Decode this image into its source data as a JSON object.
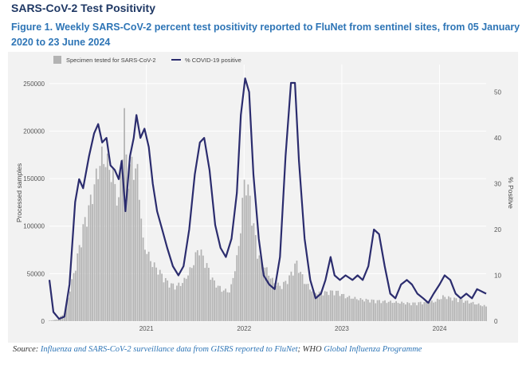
{
  "page": {
    "title": "SARS-CoV-2 Test Positivity",
    "caption_label": "Figure 1.",
    "caption_text": "Weekly SARS-CoV-2 percent test positivity reported to FluNet from sentinel sites, from 05 January 2020 to 23 June 2024",
    "source_label": "Source:",
    "source_link1": "Influenza and SARS-CoV-2 surveillance data from GISRS reported to FluNet",
    "source_sep": "; WHO ",
    "source_link2": "Global Influenza Programme"
  },
  "colors": {
    "bars": "#b3b3b3",
    "line": "#2b2c6e",
    "plot_bg": "#f2f2f2",
    "grid": "#ffffff",
    "title": "#1f3864",
    "caption": "#2e75b6"
  },
  "chart_data": {
    "type": "bar+line",
    "title": "",
    "xlabel": "",
    "ylabel": "Processed samples",
    "y2label": "% Positive",
    "ylim": [
      0,
      270000
    ],
    "y2lim": [
      0,
      56
    ],
    "yticks": [
      "0",
      "50000",
      "100000",
      "150000",
      "200000",
      "250000"
    ],
    "y2ticks": [
      "0",
      "10",
      "20",
      "30",
      "40",
      "50"
    ],
    "xticks": [
      "2021",
      "2022",
      "2023",
      "2024"
    ],
    "grid": true,
    "legend_position": "top-left",
    "series": [
      {
        "name": "Specimen tested for SARS-CoV-2",
        "kind": "bar",
        "axis": "left",
        "points": [
          [
            "2020-01-05",
            500
          ],
          [
            "2020-02-01",
            1500
          ],
          [
            "2020-03-01",
            8000
          ],
          [
            "2020-03-20",
            30000
          ],
          [
            "2020-04-15",
            60000
          ],
          [
            "2020-05-10",
            95000
          ],
          [
            "2020-06-05",
            120000
          ],
          [
            "2020-07-01",
            150000
          ],
          [
            "2020-07-20",
            168000
          ],
          [
            "2020-08-10",
            160000
          ],
          [
            "2020-09-01",
            145000
          ],
          [
            "2020-09-20",
            120000
          ],
          [
            "2020-10-10",
            215000
          ],
          [
            "2020-10-20",
            150000
          ],
          [
            "2020-11-10",
            160000
          ],
          [
            "2020-12-01",
            150000
          ],
          [
            "2020-12-20",
            80000
          ],
          [
            "2021-01-20",
            60000
          ],
          [
            "2021-02-20",
            50000
          ],
          [
            "2021-03-20",
            40000
          ],
          [
            "2021-04-20",
            35000
          ],
          [
            "2021-05-20",
            40000
          ],
          [
            "2021-06-20",
            55000
          ],
          [
            "2021-07-15",
            75000
          ],
          [
            "2021-08-10",
            60000
          ],
          [
            "2021-09-10",
            40000
          ],
          [
            "2021-10-10",
            32000
          ],
          [
            "2021-11-10",
            30000
          ],
          [
            "2021-12-10",
            70000
          ],
          [
            "2022-01-05",
            150000
          ],
          [
            "2022-01-25",
            120000
          ],
          [
            "2022-02-20",
            70000
          ],
          [
            "2022-03-20",
            55000
          ],
          [
            "2022-04-20",
            40000
          ],
          [
            "2022-05-20",
            35000
          ],
          [
            "2022-06-20",
            45000
          ],
          [
            "2022-07-15",
            60000
          ],
          [
            "2022-08-15",
            40000
          ],
          [
            "2022-09-15",
            30000
          ],
          [
            "2022-10-15",
            28000
          ],
          [
            "2022-11-15",
            30000
          ],
          [
            "2022-12-15",
            30000
          ],
          [
            "2023-01-15",
            25000
          ],
          [
            "2023-03-15",
            22000
          ],
          [
            "2023-06-15",
            20000
          ],
          [
            "2023-09-15",
            18000
          ],
          [
            "2023-12-15",
            20000
          ],
          [
            "2024-01-15",
            25000
          ],
          [
            "2024-03-15",
            22000
          ],
          [
            "2024-06-23",
            15000
          ]
        ]
      },
      {
        "name": "% COVID-19 positive",
        "kind": "line",
        "axis": "right",
        "points": [
          [
            "2020-01-05",
            9
          ],
          [
            "2020-01-20",
            2
          ],
          [
            "2020-02-10",
            0.5
          ],
          [
            "2020-03-01",
            1
          ],
          [
            "2020-03-20",
            8
          ],
          [
            "2020-04-10",
            26
          ],
          [
            "2020-04-25",
            31
          ],
          [
            "2020-05-10",
            29
          ],
          [
            "2020-06-01",
            36
          ],
          [
            "2020-06-20",
            41
          ],
          [
            "2020-07-05",
            43
          ],
          [
            "2020-07-20",
            39
          ],
          [
            "2020-08-05",
            40
          ],
          [
            "2020-08-20",
            34
          ],
          [
            "2020-09-05",
            33
          ],
          [
            "2020-09-20",
            31
          ],
          [
            "2020-10-01",
            35
          ],
          [
            "2020-10-15",
            24
          ],
          [
            "2020-11-01",
            36
          ],
          [
            "2020-11-15",
            40
          ],
          [
            "2020-11-25",
            45
          ],
          [
            "2020-12-10",
            40
          ],
          [
            "2020-12-25",
            42
          ],
          [
            "2021-01-10",
            38
          ],
          [
            "2021-01-25",
            30
          ],
          [
            "2021-02-10",
            24
          ],
          [
            "2021-03-01",
            20
          ],
          [
            "2021-03-20",
            16
          ],
          [
            "2021-04-10",
            12
          ],
          [
            "2021-05-01",
            10
          ],
          [
            "2021-05-20",
            12
          ],
          [
            "2021-06-10",
            20
          ],
          [
            "2021-07-01",
            32
          ],
          [
            "2021-07-20",
            39
          ],
          [
            "2021-08-05",
            40
          ],
          [
            "2021-08-25",
            33
          ],
          [
            "2021-09-15",
            21
          ],
          [
            "2021-10-05",
            16
          ],
          [
            "2021-10-25",
            14
          ],
          [
            "2021-11-15",
            18
          ],
          [
            "2021-12-05",
            28
          ],
          [
            "2021-12-20",
            45
          ],
          [
            "2022-01-05",
            53
          ],
          [
            "2022-01-20",
            50
          ],
          [
            "2022-02-05",
            32
          ],
          [
            "2022-02-25",
            18
          ],
          [
            "2022-03-15",
            10
          ],
          [
            "2022-04-05",
            8
          ],
          [
            "2022-04-25",
            7
          ],
          [
            "2022-05-15",
            14
          ],
          [
            "2022-06-05",
            36
          ],
          [
            "2022-06-25",
            52
          ],
          [
            "2022-07-10",
            52
          ],
          [
            "2022-07-25",
            35
          ],
          [
            "2022-08-15",
            18
          ],
          [
            "2022-09-05",
            9
          ],
          [
            "2022-09-25",
            5
          ],
          [
            "2022-10-15",
            6
          ],
          [
            "2022-11-01",
            9
          ],
          [
            "2022-11-20",
            14
          ],
          [
            "2022-12-05",
            10
          ],
          [
            "2022-12-25",
            9
          ],
          [
            "2023-01-15",
            10
          ],
          [
            "2023-02-10",
            9
          ],
          [
            "2023-03-01",
            10
          ],
          [
            "2023-03-20",
            9
          ],
          [
            "2023-04-10",
            12
          ],
          [
            "2023-05-01",
            20
          ],
          [
            "2023-05-20",
            19
          ],
          [
            "2023-06-10",
            12
          ],
          [
            "2023-07-01",
            6
          ],
          [
            "2023-07-20",
            5
          ],
          [
            "2023-08-10",
            8
          ],
          [
            "2023-09-01",
            9
          ],
          [
            "2023-09-20",
            8
          ],
          [
            "2023-10-10",
            6
          ],
          [
            "2023-11-01",
            5
          ],
          [
            "2023-11-20",
            4
          ],
          [
            "2023-12-10",
            6
          ],
          [
            "2024-01-01",
            8
          ],
          [
            "2024-01-20",
            10
          ],
          [
            "2024-02-10",
            9
          ],
          [
            "2024-03-01",
            6
          ],
          [
            "2024-03-20",
            5
          ],
          [
            "2024-04-10",
            6
          ],
          [
            "2024-05-01",
            5
          ],
          [
            "2024-05-20",
            7
          ],
          [
            "2024-06-23",
            6
          ]
        ]
      }
    ]
  }
}
